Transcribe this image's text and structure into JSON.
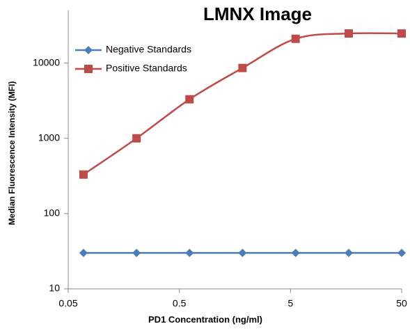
{
  "chart_data": {
    "type": "line",
    "title": "LMNX Image",
    "x_label": "PD1 Concentration  (ng/ml)",
    "y_label": "Median Fluorescence Intensity (MFI)",
    "x": [
      0.0686,
      0.206,
      0.617,
      1.85,
      5.56,
      16.7,
      50
    ],
    "series": [
      {
        "name": "Negative Standards",
        "color": "#4a7ebb",
        "marker": "diamond",
        "values": [
          30,
          30,
          30,
          30,
          30,
          30,
          30
        ]
      },
      {
        "name": "Positive Standards",
        "color": "#be4b48",
        "marker": "square",
        "values": [
          330,
          1000,
          3300,
          8600,
          21000,
          24700,
          24700
        ]
      }
    ],
    "xlim": [
      0.05,
      50
    ],
    "xticks": [
      0.05,
      0.5,
      5,
      50
    ],
    "xlog": true,
    "ylim": [
      10,
      50000
    ],
    "yticks": [
      10,
      100,
      1000,
      10000
    ],
    "ylog": true,
    "grid": false,
    "legend": "upper-left",
    "smooth": true
  }
}
